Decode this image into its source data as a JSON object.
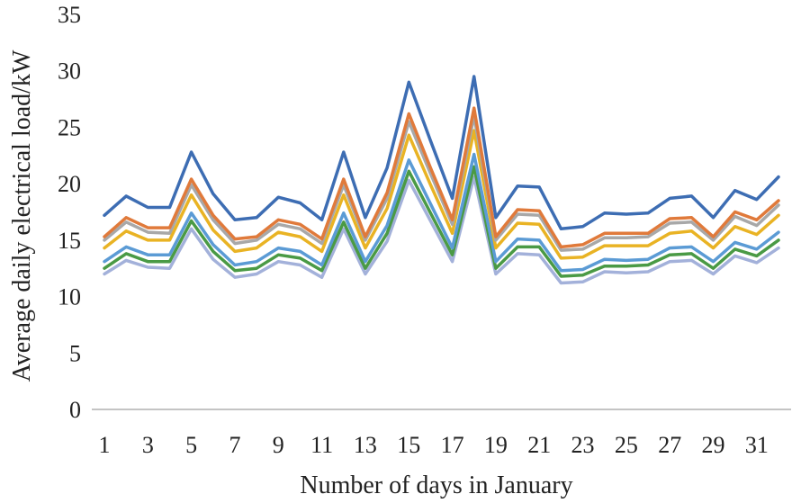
{
  "chart_data": {
    "type": "line",
    "xlabel": "Number of days in January",
    "ylabel": "Average daily electrical load/kW",
    "ylim": [
      0,
      35
    ],
    "y_ticks": [
      0,
      5,
      10,
      15,
      20,
      25,
      30,
      35
    ],
    "x": [
      1,
      2,
      3,
      4,
      5,
      6,
      7,
      8,
      9,
      10,
      11,
      12,
      13,
      14,
      15,
      16,
      17,
      18,
      19,
      20,
      21,
      22,
      23,
      24,
      25,
      26,
      27,
      28,
      29,
      30,
      31,
      32
    ],
    "x_tick_labels": [
      "1",
      "3",
      "5",
      "7",
      "9",
      "11",
      "13",
      "15",
      "17",
      "19",
      "21",
      "23",
      "25",
      "27",
      "29",
      "31"
    ],
    "x_tick_values": [
      1,
      3,
      5,
      7,
      9,
      11,
      13,
      15,
      17,
      19,
      21,
      23,
      25,
      27,
      29,
      31
    ],
    "grid": false,
    "legend": "none",
    "series": [
      {
        "color": "#3d6db3",
        "values": [
          17.2,
          18.9,
          17.9,
          17.9,
          22.8,
          19.1,
          16.8,
          17.0,
          18.8,
          18.3,
          16.8,
          22.8,
          17.0,
          21.4,
          29.0,
          23.8,
          18.7,
          29.5,
          17.0,
          19.8,
          19.7,
          16.0,
          16.2,
          17.4,
          17.3,
          17.4,
          18.7,
          18.9,
          17.0,
          19.4,
          18.6,
          20.6
        ]
      },
      {
        "color": "#e07a3b",
        "values": [
          15.3,
          17.0,
          16.1,
          16.1,
          20.4,
          17.2,
          15.1,
          15.3,
          16.8,
          16.4,
          15.1,
          20.4,
          15.3,
          19.2,
          26.2,
          21.4,
          16.8,
          26.7,
          15.3,
          17.7,
          17.6,
          14.4,
          14.6,
          15.6,
          15.6,
          15.6,
          16.9,
          17.0,
          15.3,
          17.5,
          16.8,
          18.5
        ]
      },
      {
        "color": "#a8a8a8",
        "values": [
          15.0,
          16.6,
          15.7,
          15.6,
          19.9,
          16.8,
          14.7,
          15.0,
          16.4,
          16.0,
          14.7,
          19.9,
          15.0,
          18.7,
          25.5,
          20.9,
          16.4,
          26.0,
          15.0,
          17.3,
          17.2,
          14.1,
          14.2,
          15.2,
          15.2,
          15.3,
          16.5,
          16.6,
          15.0,
          17.1,
          16.3,
          18.1
        ]
      },
      {
        "color": "#e9b324",
        "values": [
          14.3,
          15.8,
          15.0,
          15.0,
          19.0,
          15.9,
          14.0,
          14.3,
          15.7,
          15.3,
          14.0,
          19.0,
          14.3,
          17.8,
          24.3,
          19.9,
          15.6,
          24.7,
          14.3,
          16.5,
          16.4,
          13.4,
          13.5,
          14.5,
          14.5,
          14.5,
          15.6,
          15.8,
          14.3,
          16.2,
          15.5,
          17.2
        ]
      },
      {
        "color": "#5b9bd5",
        "values": [
          13.1,
          14.4,
          13.7,
          13.7,
          17.4,
          14.6,
          12.8,
          13.1,
          14.3,
          14.0,
          12.8,
          17.4,
          13.1,
          16.3,
          22.1,
          18.2,
          14.3,
          22.6,
          13.1,
          15.1,
          15.0,
          12.3,
          12.4,
          13.3,
          13.2,
          13.3,
          14.3,
          14.4,
          13.1,
          14.8,
          14.2,
          15.7
        ]
      },
      {
        "color": "#4a9a45",
        "values": [
          12.5,
          13.8,
          13.1,
          13.1,
          16.7,
          14.0,
          12.3,
          12.5,
          13.7,
          13.4,
          12.3,
          16.6,
          12.5,
          15.6,
          21.1,
          17.4,
          13.7,
          21.5,
          12.5,
          14.4,
          14.4,
          11.8,
          11.9,
          12.7,
          12.7,
          12.8,
          13.7,
          13.8,
          12.5,
          14.2,
          13.6,
          15.0
        ]
      },
      {
        "color": "#a3b1da",
        "values": [
          12.0,
          13.2,
          12.6,
          12.5,
          16.0,
          13.3,
          11.7,
          12.0,
          13.1,
          12.8,
          11.7,
          16.0,
          12.0,
          14.9,
          20.3,
          16.7,
          13.1,
          20.6,
          12.0,
          13.8,
          13.7,
          11.2,
          11.3,
          12.2,
          12.1,
          12.2,
          13.1,
          13.2,
          12.0,
          13.6,
          13.0,
          14.3
        ]
      }
    ]
  }
}
